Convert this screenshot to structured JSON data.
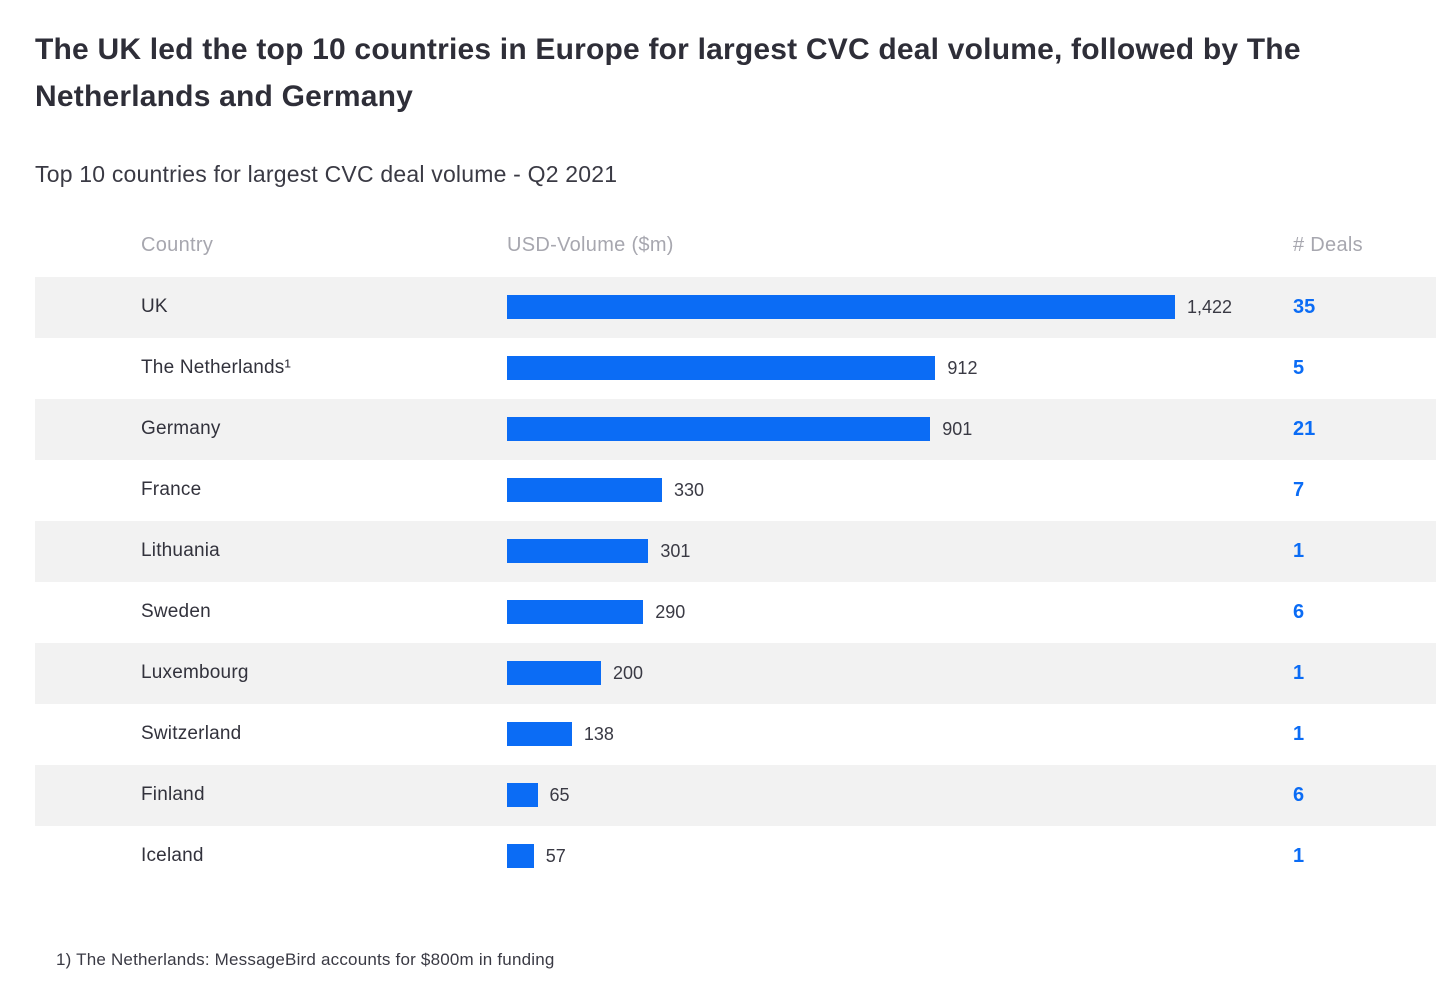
{
  "colors": {
    "accent": "#0b6cf5",
    "row_alt": "#f2f2f2",
    "text_dark": "#2e2e38",
    "text_muted": "#a7a7af"
  },
  "page": {
    "title": "The UK led the top 10 countries in Europe for largest CVC deal volume, followed by The Netherlands and Germany",
    "subtitle": "Top 10 countries for largest CVC deal volume - Q2 2021",
    "footnote": "1) The Netherlands: MessageBird accounts for $800m in funding"
  },
  "table": {
    "columns": [
      "Country",
      "USD-Volume ($m)",
      "# Deals"
    ]
  },
  "chart_data": {
    "type": "bar",
    "orientation": "horizontal",
    "title": "Top 10 countries for largest CVC deal volume - Q2 2021",
    "categories": [
      "UK",
      "The Netherlands¹",
      "Germany",
      "France",
      "Lithuania",
      "Sweden",
      "Luxembourg",
      "Switzerland",
      "Finland",
      "Iceland"
    ],
    "series": [
      {
        "name": "USD-Volume ($m)",
        "values": [
          1422,
          912,
          901,
          330,
          301,
          290,
          200,
          138,
          65,
          57
        ],
        "labels": [
          "1,422",
          "912",
          "901",
          "330",
          "301",
          "290",
          "200",
          "138",
          "65",
          "57"
        ]
      },
      {
        "name": "# Deals",
        "values": [
          35,
          5,
          21,
          7,
          1,
          6,
          1,
          1,
          6,
          1
        ]
      }
    ],
    "xlim": [
      0,
      1422
    ],
    "legend": "none",
    "grid": false
  }
}
